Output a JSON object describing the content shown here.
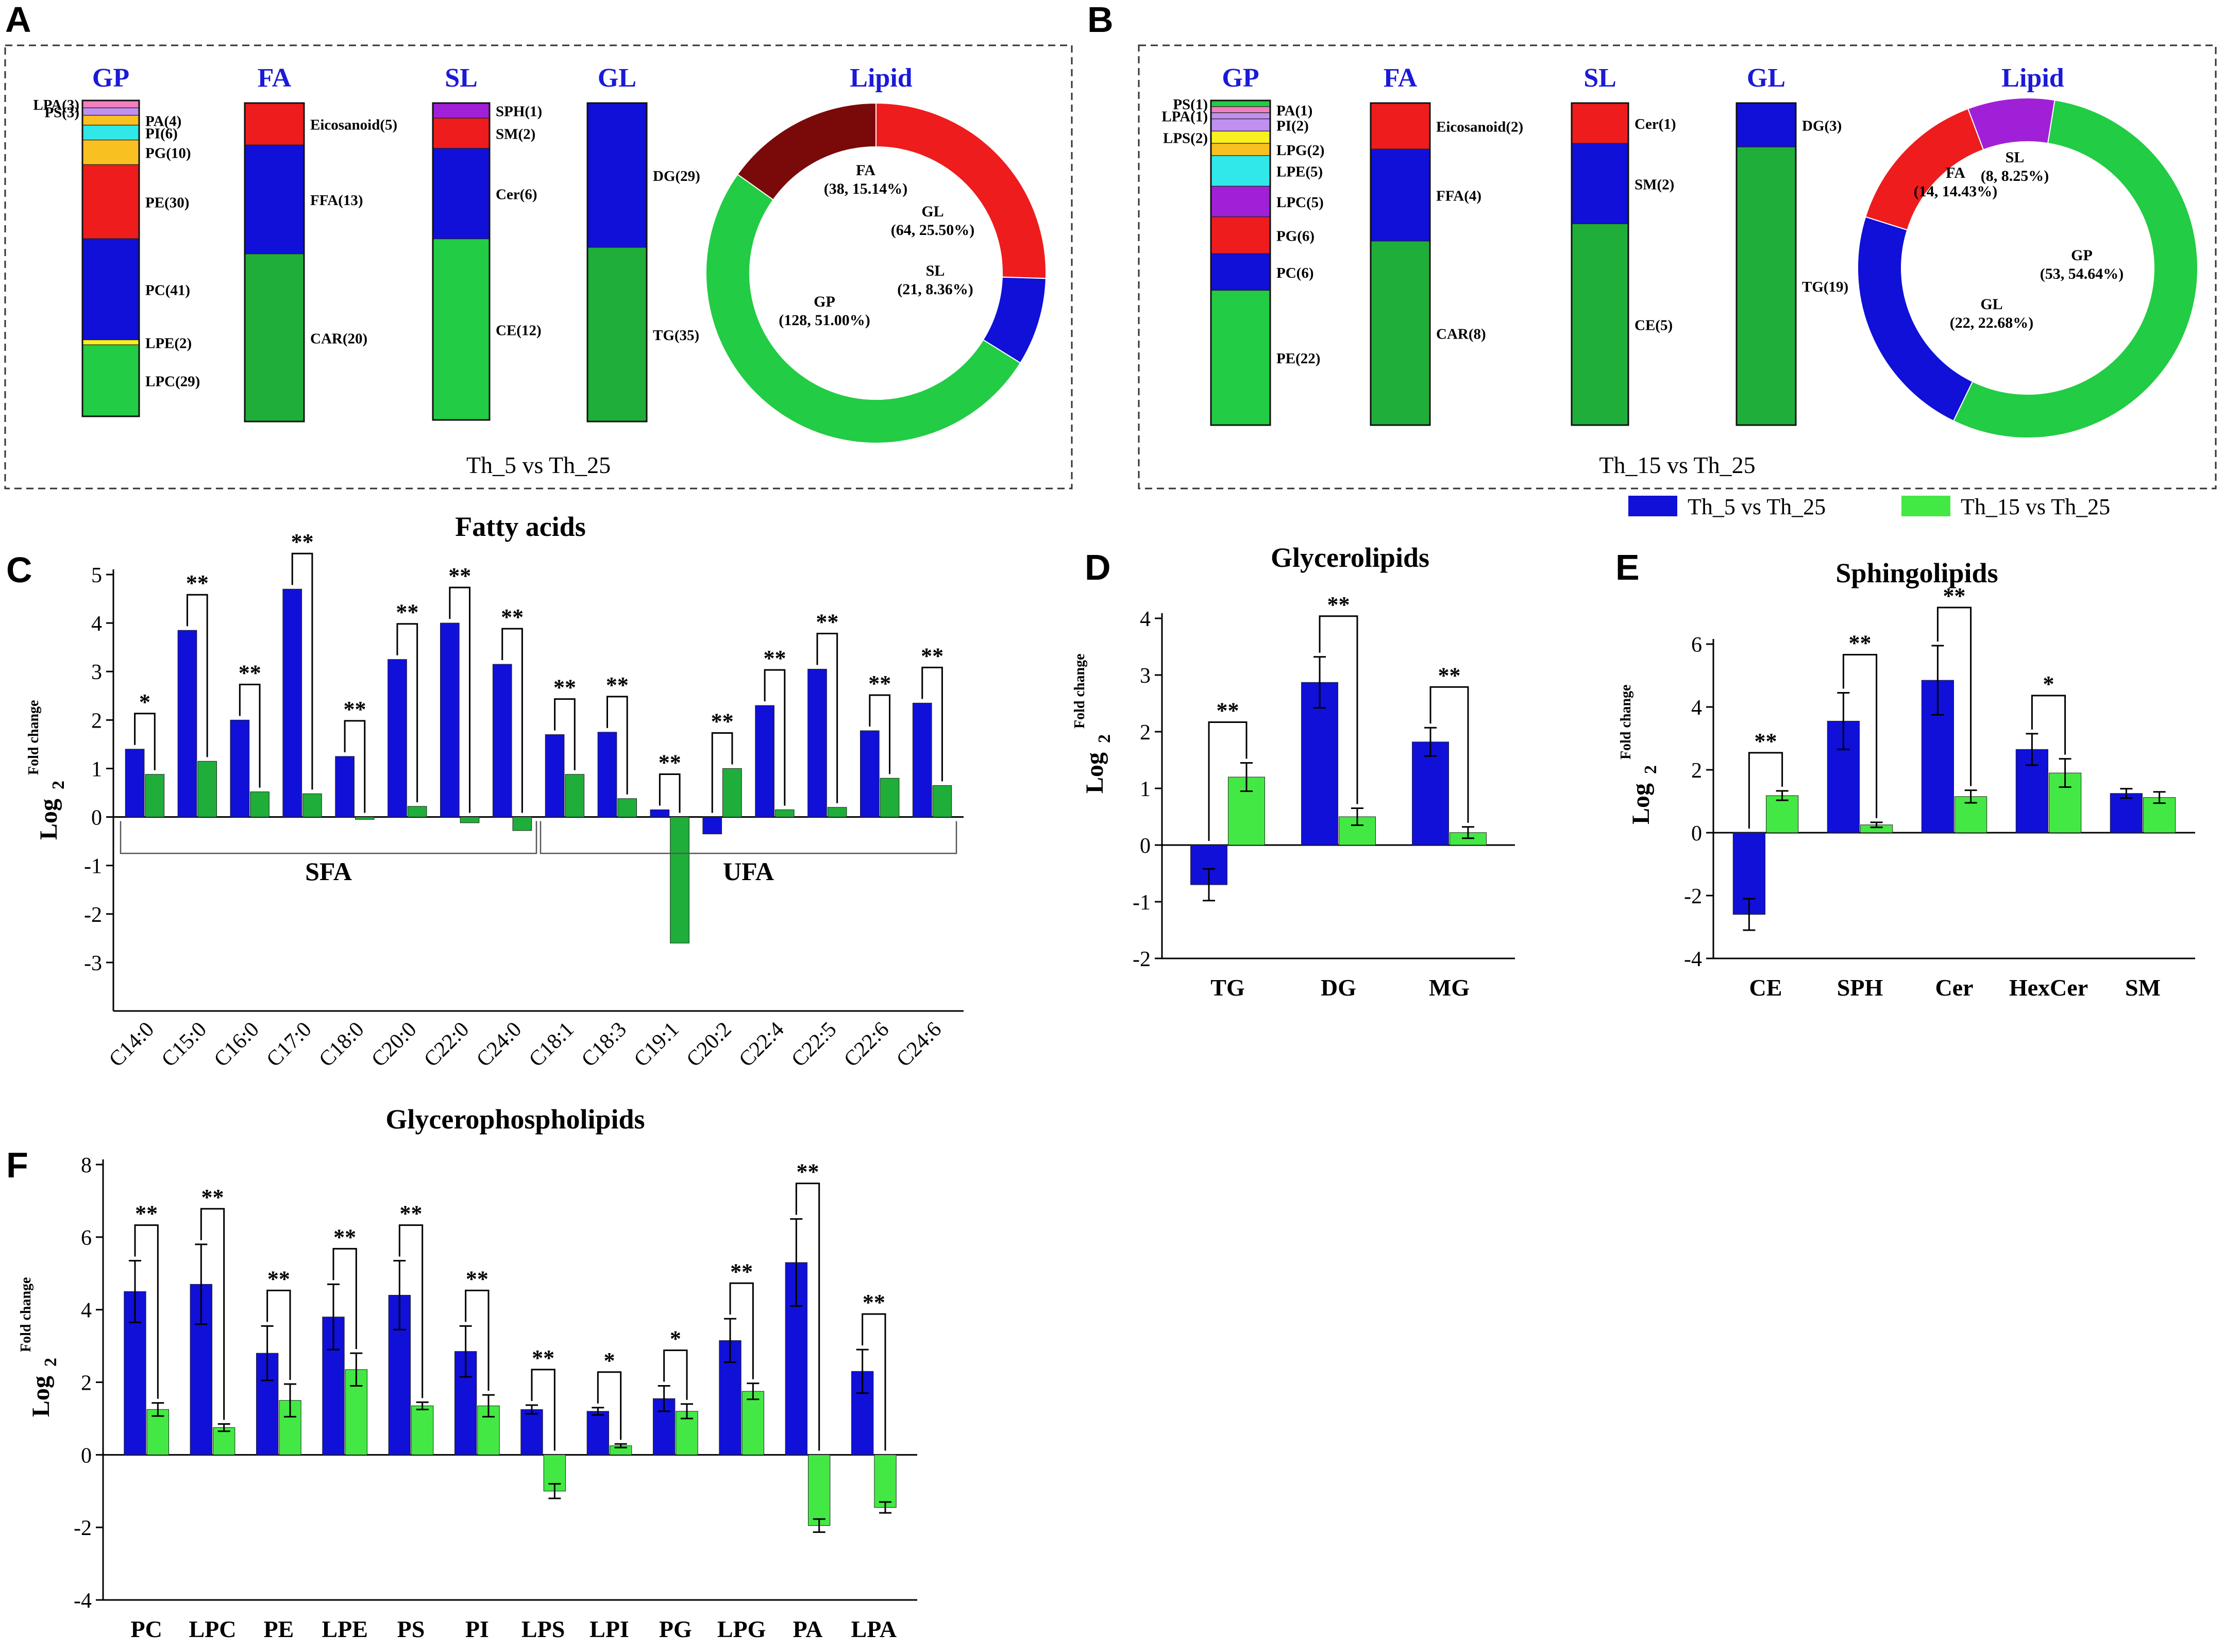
{
  "colors": {
    "blue": "#1010d8",
    "green": "#22cc44",
    "green_dark": "#1fae3a",
    "light_green": "#44e844",
    "red": "#ee1c1c",
    "dark_red": "#7a0a0a",
    "purple": "#a020d8",
    "orange": "#f8c020",
    "yellow": "#f8f020",
    "cyan": "#30e8e8",
    "pink": "#f080c0",
    "lavender": "#c090f0",
    "gray": "#b0b0b0",
    "title_blue": "#1a1ad8"
  },
  "legend": {
    "series1": "Th_5 vs Th_25",
    "series2": "Th_15 vs Th_25"
  },
  "chart_data": [
    {
      "panel": "A",
      "type": "stacked-bar-and-donut",
      "caption": "Th_5 vs Th_25",
      "stacks": [
        {
          "title": "GP",
          "segments": [
            {
              "label": "LPA(3)",
              "value": 3,
              "color": "pink"
            },
            {
              "label": "PS(3)",
              "value": 3,
              "color": "lavender"
            },
            {
              "label": "PA(4)",
              "value": 4,
              "color": "orange"
            },
            {
              "label": "PI(6)",
              "value": 6,
              "color": "cyan"
            },
            {
              "label": "PG(10)",
              "value": 10,
              "color": "orange"
            },
            {
              "label": "PE(30)",
              "value": 30,
              "color": "red"
            },
            {
              "label": "PC(41)",
              "value": 41,
              "color": "blue"
            },
            {
              "label": "LPE(2)",
              "value": 2,
              "color": "yellow"
            },
            {
              "label": "LPC(29)",
              "value": 29,
              "color": "green"
            }
          ]
        },
        {
          "title": "FA",
          "segments": [
            {
              "label": "Eicosanoid(5)",
              "value": 5,
              "color": "red"
            },
            {
              "label": "FFA(13)",
              "value": 13,
              "color": "blue"
            },
            {
              "label": "CAR(20)",
              "value": 20,
              "color": "green_dark"
            }
          ]
        },
        {
          "title": "SL",
          "segments": [
            {
              "label": "SPH(1)",
              "value": 1,
              "color": "purple"
            },
            {
              "label": "SM(2)",
              "value": 2,
              "color": "red"
            },
            {
              "label": "Cer(6)",
              "value": 6,
              "color": "blue"
            },
            {
              "label": "CE(12)",
              "value": 12,
              "color": "green"
            }
          ]
        },
        {
          "title": "GL",
          "segments": [
            {
              "label": "DG(29)",
              "value": 29,
              "color": "blue"
            },
            {
              "label": "TG(35)",
              "value": 35,
              "color": "green_dark"
            }
          ]
        }
      ],
      "donut": {
        "title": "Lipid",
        "slices": [
          {
            "name": "GL",
            "count": 64,
            "percent": 25.5,
            "color": "red",
            "label_line1": "GL",
            "label_line2": "(64, 25.50%)"
          },
          {
            "name": "SL",
            "count": 21,
            "percent": 8.36,
            "color": "blue",
            "label_line1": "SL",
            "label_line2": "(21, 8.36%)"
          },
          {
            "name": "GP",
            "count": 128,
            "percent": 51.0,
            "color": "green",
            "label_line1": "GP",
            "label_line2": "(128, 51.00%)"
          },
          {
            "name": "FA",
            "count": 38,
            "percent": 15.14,
            "color": "dark_red",
            "label_line1": "FA",
            "label_line2": "(38, 15.14%)"
          }
        ]
      }
    },
    {
      "panel": "B",
      "type": "stacked-bar-and-donut",
      "caption": "Th_15 vs Th_25",
      "stacks": [
        {
          "title": "GP",
          "segments": [
            {
              "label": "PS(1)",
              "value": 1,
              "color": "green"
            },
            {
              "label": "PA(1)",
              "value": 1,
              "color": "pink"
            },
            {
              "label": "LPA(1)",
              "value": 1,
              "color": "lavender"
            },
            {
              "label": "PI(2)",
              "value": 2,
              "color": "lavender"
            },
            {
              "label": "LPS(2)",
              "value": 2,
              "color": "yellow"
            },
            {
              "label": "LPG(2)",
              "value": 2,
              "color": "orange"
            },
            {
              "label": "LPE(5)",
              "value": 5,
              "color": "cyan"
            },
            {
              "label": "LPC(5)",
              "value": 5,
              "color": "purple"
            },
            {
              "label": "PG(6)",
              "value": 6,
              "color": "red"
            },
            {
              "label": "PC(6)",
              "value": 6,
              "color": "blue"
            },
            {
              "label": "PE(22)",
              "value": 22,
              "color": "green"
            }
          ]
        },
        {
          "title": "FA",
          "segments": [
            {
              "label": "Eicosanoid(2)",
              "value": 2,
              "color": "red"
            },
            {
              "label": "FFA(4)",
              "value": 4,
              "color": "blue"
            },
            {
              "label": "CAR(8)",
              "value": 8,
              "color": "green_dark"
            }
          ]
        },
        {
          "title": "SL",
          "segments": [
            {
              "label": "Cer(1)",
              "value": 1,
              "color": "red"
            },
            {
              "label": "SM(2)",
              "value": 2,
              "color": "blue"
            },
            {
              "label": "CE(5)",
              "value": 5,
              "color": "green_dark"
            }
          ]
        },
        {
          "title": "GL",
          "segments": [
            {
              "label": "DG(3)",
              "value": 3,
              "color": "blue"
            },
            {
              "label": "TG(19)",
              "value": 19,
              "color": "green_dark"
            }
          ]
        }
      ],
      "donut": {
        "title": "Lipid",
        "slices": [
          {
            "name": "GP",
            "count": 53,
            "percent": 54.64,
            "color": "green",
            "label_line1": "GP",
            "label_line2": "(53, 54.64%)"
          },
          {
            "name": "GL",
            "count": 22,
            "percent": 22.68,
            "color": "blue",
            "label_line1": "GL",
            "label_line2": "(22, 22.68%)"
          },
          {
            "name": "FA",
            "count": 14,
            "percent": 14.43,
            "color": "red",
            "label_line1": "FA",
            "label_line2": "(14, 14.43%)"
          },
          {
            "name": "SL",
            "count": 8,
            "percent": 8.25,
            "color": "purple",
            "label_line1": "SL",
            "label_line2": "(8, 8.25%)"
          }
        ]
      }
    },
    {
      "panel": "C",
      "type": "bar",
      "title": "Fatty acids",
      "ylabel_main": "Log",
      "ylabel_sub": "2",
      "ylabel_sup": "Fold change",
      "ylim": [
        -4,
        5
      ],
      "yticks": [
        5,
        4,
        3,
        2,
        1,
        0,
        -1,
        -2,
        -3
      ],
      "categories": [
        "C14:0",
        "C15:0",
        "C16:0",
        "C17:0",
        "C18:0",
        "C20:0",
        "C22:0",
        "C24:0",
        "C18:1",
        "C18:3",
        "C19:1",
        "C20:2",
        "C22:4",
        "C22:5",
        "C22:6",
        "C24:6"
      ],
      "series": [
        {
          "name": "Th_5 vs Th_25",
          "color": "blue",
          "values": [
            1.4,
            3.85,
            2.0,
            4.7,
            1.25,
            3.25,
            4.0,
            3.15,
            1.7,
            1.75,
            0.15,
            -0.35,
            2.3,
            3.05,
            1.78,
            2.35
          ]
        },
        {
          "name": "Th_15 vs Th_25",
          "color": "green_dark",
          "values": [
            0.88,
            1.15,
            0.52,
            0.48,
            -0.05,
            0.22,
            -0.12,
            -0.28,
            0.88,
            0.38,
            -2.6,
            1.0,
            0.15,
            0.2,
            0.8,
            0.65
          ]
        }
      ],
      "significance": [
        "*",
        "**",
        "**",
        "**",
        "**",
        "**",
        "**",
        "**",
        "**",
        "**",
        "**",
        "**",
        "**",
        "**",
        "**",
        "**"
      ],
      "groups": [
        {
          "label": "SFA",
          "from": 0,
          "to": 7
        },
        {
          "label": "UFA",
          "from": 8,
          "to": 15
        }
      ]
    },
    {
      "panel": "D",
      "type": "bar",
      "title": "Glycerolipids",
      "ylabel_main": "Log",
      "ylabel_sub": "2",
      "ylabel_sup": "Fold change",
      "ylim": [
        -2,
        4
      ],
      "yticks": [
        4,
        3,
        2,
        1,
        0,
        -1,
        -2
      ],
      "categories": [
        "TG",
        "DG",
        "MG"
      ],
      "series": [
        {
          "name": "Th_5 vs Th_25",
          "color": "blue",
          "values": [
            -0.7,
            2.87,
            1.82
          ],
          "errors": [
            0.28,
            0.45,
            0.25
          ]
        },
        {
          "name": "Th_15 vs Th_25",
          "color": "light_green",
          "values": [
            1.2,
            0.5,
            0.22
          ],
          "errors": [
            0.25,
            0.15,
            0.1
          ]
        }
      ],
      "significance": [
        "**",
        "**",
        "**"
      ]
    },
    {
      "panel": "E",
      "type": "bar",
      "title": "Sphingolipids",
      "ylabel_main": "Log",
      "ylabel_sub": "2",
      "ylabel_sup": "Fold change",
      "ylim": [
        -4,
        6
      ],
      "yticks": [
        6,
        4,
        2,
        0,
        -2,
        -4
      ],
      "categories": [
        "CE",
        "SPH",
        "Cer",
        "HexCer",
        "SM"
      ],
      "series": [
        {
          "name": "Th_5 vs Th_25",
          "color": "blue",
          "values": [
            -2.6,
            3.55,
            4.85,
            2.65,
            1.25
          ],
          "errors": [
            0.5,
            0.9,
            1.1,
            0.5,
            0.15
          ]
        },
        {
          "name": "Th_15 vs Th_25",
          "color": "light_green",
          "values": [
            1.18,
            0.25,
            1.15,
            1.9,
            1.12
          ],
          "errors": [
            0.15,
            0.08,
            0.2,
            0.45,
            0.18
          ]
        }
      ],
      "significance": [
        "**",
        "**",
        "**",
        "*",
        ""
      ]
    },
    {
      "panel": "F",
      "type": "bar",
      "title": "Glycerophospholipids",
      "ylabel_main": "Log",
      "ylabel_sub": "2",
      "ylabel_sup": "Fold change",
      "ylim": [
        -4,
        8
      ],
      "yticks": [
        8,
        6,
        4,
        2,
        0,
        -2,
        -4
      ],
      "categories": [
        "PC",
        "LPC",
        "PE",
        "LPE",
        "PS",
        "PI",
        "LPS",
        "LPI",
        "PG",
        "LPG",
        "PA",
        "LPA"
      ],
      "series": [
        {
          "name": "Th_5 vs Th_25",
          "color": "blue",
          "values": [
            4.5,
            4.7,
            2.8,
            3.8,
            4.4,
            2.85,
            1.25,
            1.2,
            1.55,
            3.15,
            5.3,
            2.3
          ],
          "errors": [
            0.85,
            1.1,
            0.75,
            0.9,
            0.95,
            0.7,
            0.12,
            0.1,
            0.35,
            0.6,
            1.2,
            0.6
          ]
        },
        {
          "name": "Th_15 vs Th_25",
          "color": "light_green",
          "values": [
            1.25,
            0.75,
            1.5,
            2.35,
            1.35,
            1.35,
            -1.0,
            0.25,
            1.2,
            1.75,
            -1.95,
            -1.45
          ],
          "errors": [
            0.18,
            0.1,
            0.45,
            0.45,
            0.1,
            0.3,
            0.2,
            0.05,
            0.2,
            0.22,
            0.18,
            0.15
          ]
        }
      ],
      "significance": [
        "**",
        "**",
        "**",
        "**",
        "**",
        "**",
        "**",
        "*",
        "*",
        "**",
        "**",
        "**"
      ]
    }
  ]
}
